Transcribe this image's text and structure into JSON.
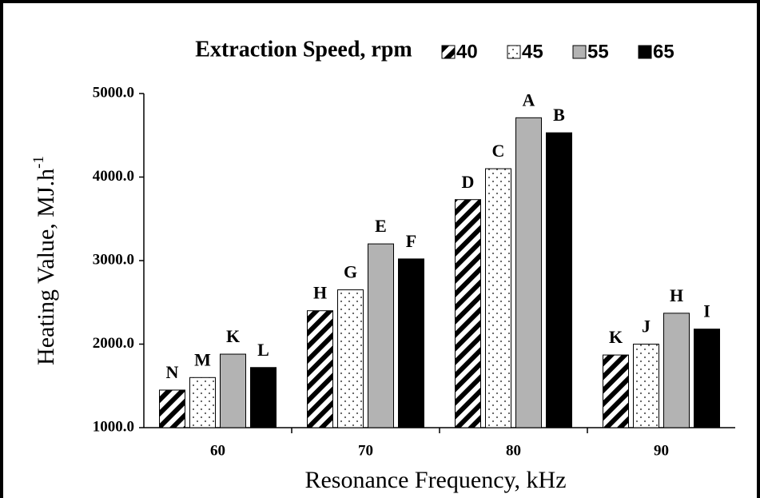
{
  "chart_data": {
    "type": "bar",
    "legend_title": "Extraction Speed, rpm",
    "x_label": "Resonance Frequency, kHz",
    "y_label": {
      "text": "Heating Value, MJ.h",
      "superscript": "-1"
    },
    "categories": [
      "60",
      "70",
      "80",
      "90"
    ],
    "ylim": [
      1000,
      5000
    ],
    "yticks": [
      {
        "value": 1000,
        "label": "1000.0"
      },
      {
        "value": 2000,
        "label": "2000.0"
      },
      {
        "value": 3000,
        "label": "3000.0"
      },
      {
        "value": 4000,
        "label": "4000.0"
      },
      {
        "value": 5000,
        "label": "5000.0"
      }
    ],
    "series": [
      {
        "name": "40",
        "color": "#000000",
        "pattern": "diagonal",
        "values": [
          1450,
          2400,
          3730,
          1870
        ],
        "letters": [
          "N",
          "H",
          "D",
          "K"
        ]
      },
      {
        "name": "45",
        "color": "#000000",
        "pattern": "dots",
        "values": [
          1600,
          2650,
          4100,
          2000
        ],
        "letters": [
          "M",
          "G",
          "C",
          "J"
        ]
      },
      {
        "name": "55",
        "color": "#b3b3b3",
        "pattern": null,
        "values": [
          1880,
          3200,
          4710,
          2370
        ],
        "letters": [
          "K",
          "E",
          "A",
          "H"
        ]
      },
      {
        "name": "65",
        "color": "#000000",
        "pattern": null,
        "values": [
          1720,
          3020,
          4530,
          2180
        ],
        "letters": [
          "L",
          "F",
          "B",
          "I"
        ]
      }
    ]
  }
}
